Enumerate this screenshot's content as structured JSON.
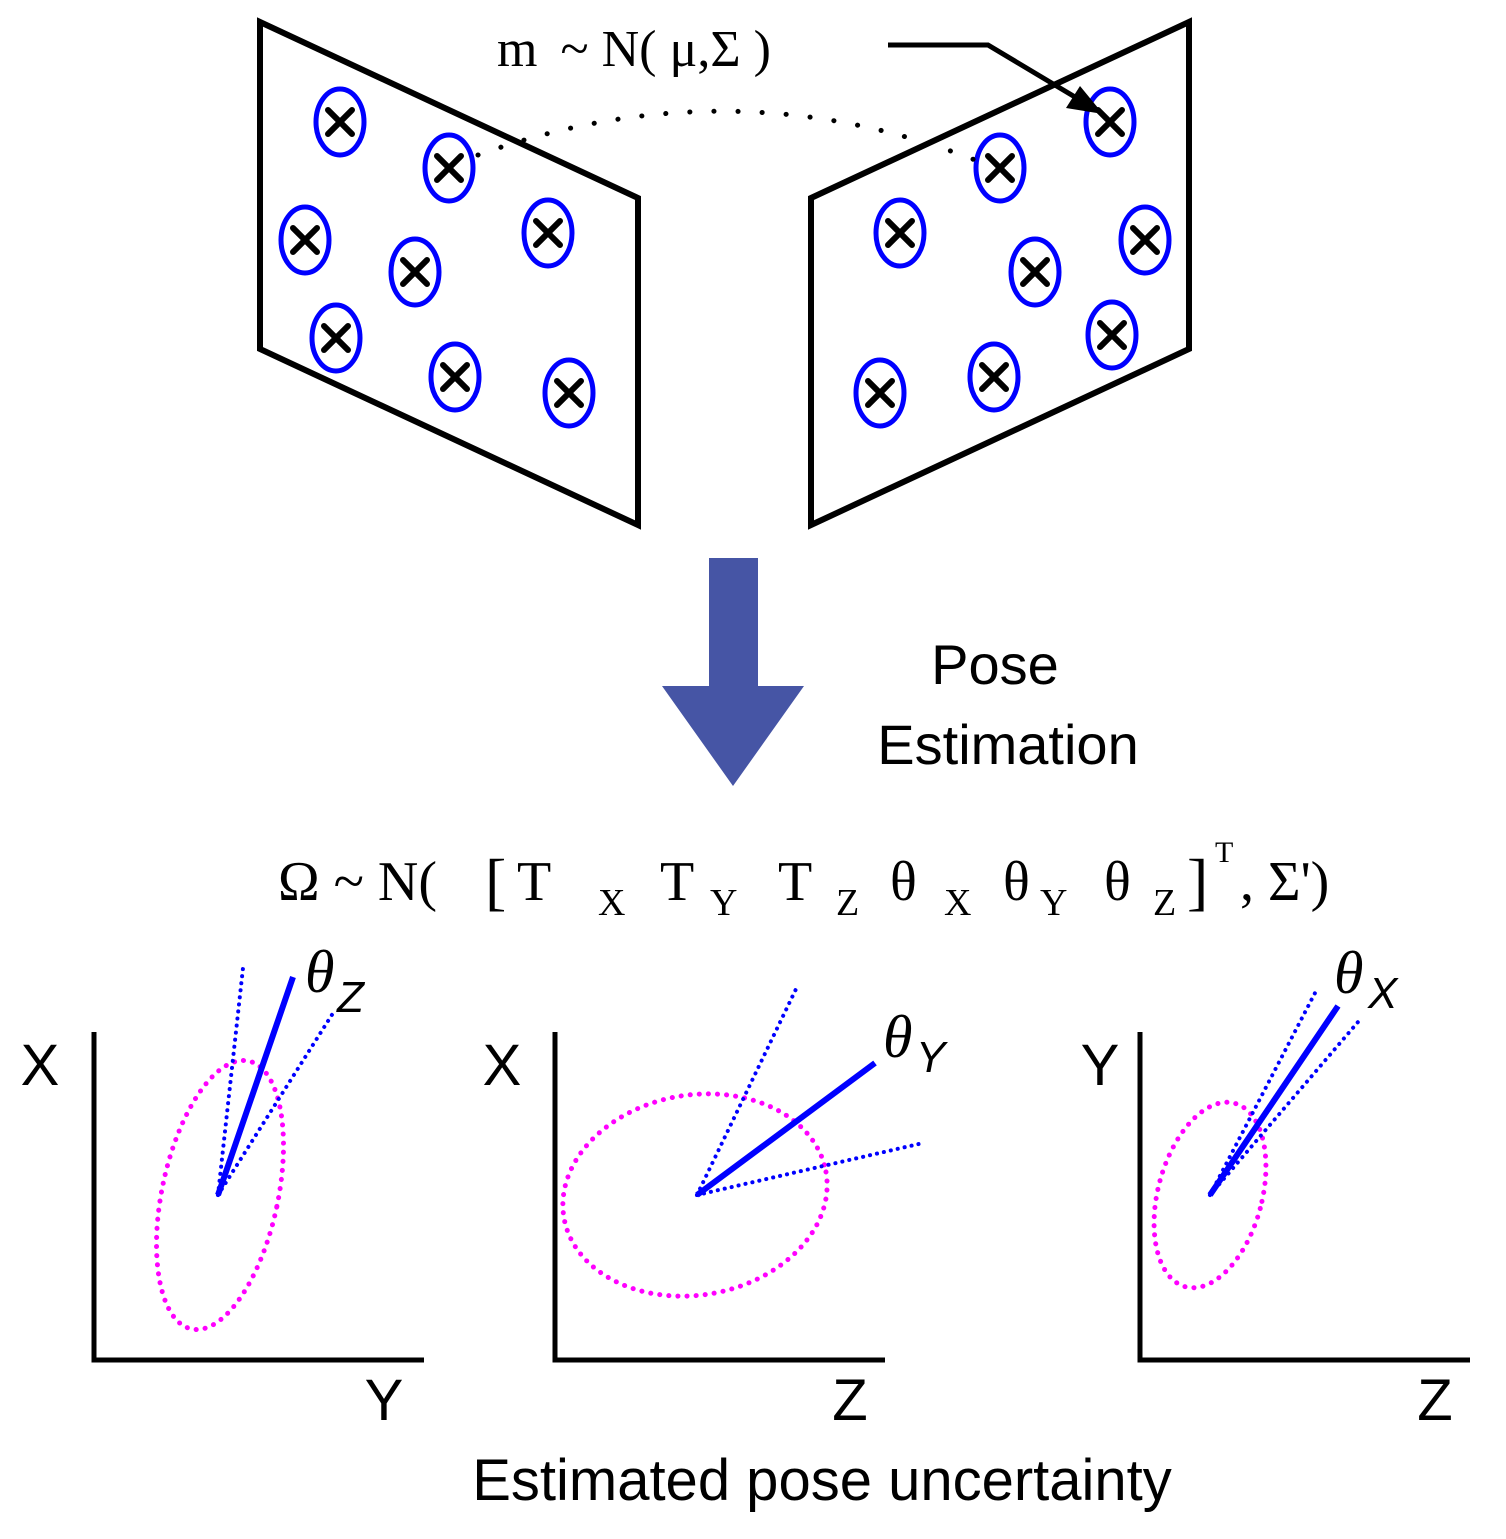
{
  "colors": {
    "frame": "#000000",
    "feature_ellipse": "#0000ff",
    "arrow": "#4655a5",
    "axis_vector": "#0000ff",
    "uncertainty_ellipse": "#ff00ff"
  },
  "measurement_label": {
    "var": "m",
    "dist": "~ N( μ,Σ )"
  },
  "process_label": {
    "line1": "Pose",
    "line2": "Estimation"
  },
  "pose_formula": {
    "lhs": "Ω ~ N(",
    "open": "[",
    "tx": "T",
    "tx_sub": "X",
    "ty": "T",
    "ty_sub": "Y",
    "tz": "T",
    "tz_sub": "Z",
    "thx": "θ",
    "thx_sub": "X",
    "thy": "θ",
    "thy_sub": "Y",
    "thz": "θ",
    "thz_sub": "Z",
    "close": "]",
    "transpose": "T",
    "rest": ", Σ')"
  },
  "plots": [
    {
      "v_axis": "X",
      "h_axis": "Y",
      "angle": "θ",
      "angle_sub": "Z"
    },
    {
      "v_axis": "X",
      "h_axis": "Z",
      "angle": "θ",
      "angle_sub": "Y"
    },
    {
      "v_axis": "Y",
      "h_axis": "Z",
      "angle": "θ",
      "angle_sub": "X"
    }
  ],
  "caption": "Estimated pose uncertainty"
}
